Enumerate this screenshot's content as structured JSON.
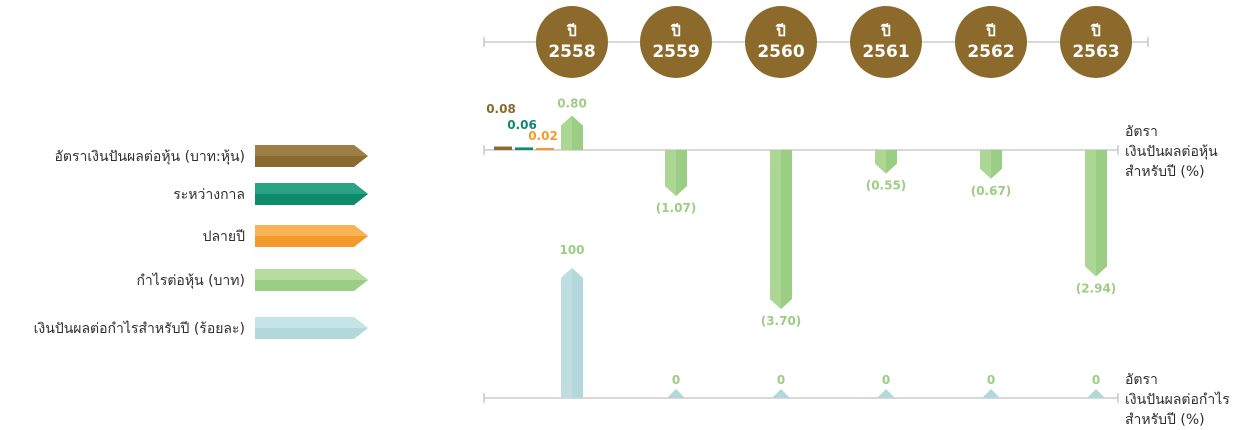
{
  "chart_data": {
    "type": "bar",
    "years": [
      {
        "prefix": "ปี",
        "year": "2558"
      },
      {
        "prefix": "ปี",
        "year": "2559"
      },
      {
        "prefix": "ปี",
        "year": "2560"
      },
      {
        "prefix": "ปี",
        "year": "2561"
      },
      {
        "prefix": "ปี",
        "year": "2562"
      },
      {
        "prefix": "ปี",
        "year": "2563"
      }
    ],
    "legend": [
      {
        "label": "อัตราเงินปันผลต่อหุ้น (บาท:หุ้น)",
        "color": "#8a6a2e",
        "color_light": "#9d7f45"
      },
      {
        "label": "ระหว่างกาล",
        "color": "#0e8a6c",
        "color_light": "#2aa384"
      },
      {
        "label": "ปลายปี",
        "color": "#f39a2a",
        "color_light": "#f7b355"
      },
      {
        "label": "กำไรต่อหุ้น (บาท)",
        "color": "#9ccd84",
        "color_light": "#b6dc9f"
      },
      {
        "label": "เงินปันผลต่อกำไรสำหรับปี (ร้อยละ)",
        "color": "#b3d8dc",
        "color_light": "#c6e3e6"
      }
    ],
    "top_axis_title": [
      "อัตรา",
      "เงินปันผลต่อหุ้น",
      "สำหรับปี (%)"
    ],
    "bottom_axis_title": [
      "อัตรา",
      "เงินปันผลต่อกำไร",
      "สำหรับปี (%)"
    ],
    "series": [
      {
        "name": "อัตราเงินปันผลต่อหุ้น (บาท:หุ้น)",
        "values": [
          0.08,
          null,
          null,
          null,
          null,
          null
        ],
        "labels": [
          "0.08",
          "",
          "",
          "",
          "",
          ""
        ],
        "color": "#8a6a2e"
      },
      {
        "name": "ระหว่างกาล",
        "values": [
          0.06,
          null,
          null,
          null,
          null,
          null
        ],
        "labels": [
          "0.06",
          "",
          "",
          "",
          "",
          ""
        ],
        "color": "#0e8a6c"
      },
      {
        "name": "ปลายปี",
        "values": [
          0.02,
          null,
          null,
          null,
          null,
          null
        ],
        "labels": [
          "0.02",
          "",
          "",
          "",
          "",
          ""
        ],
        "color": "#f39a2a"
      },
      {
        "name": "กำไรต่อหุ้น (บาท)",
        "values": [
          0.8,
          -1.07,
          -3.7,
          -0.55,
          -0.67,
          -2.94
        ],
        "labels": [
          "0.80",
          "(1.07)",
          "(3.70)",
          "(0.55)",
          "(0.67)",
          "(2.94)"
        ],
        "color": "#9ccd84"
      },
      {
        "name": "เงินปันผลต่อกำไรสำหรับปี (ร้อยละ)",
        "values": [
          100,
          0,
          0,
          0,
          0,
          0
        ],
        "labels": [
          "100",
          "0",
          "0",
          "0",
          "0",
          "0"
        ],
        "color": "#b3d8dc"
      }
    ],
    "colors": {
      "year_circle": "#8b6a2b",
      "axis": "#b0b0b0",
      "text": "#2f2f2f"
    }
  }
}
